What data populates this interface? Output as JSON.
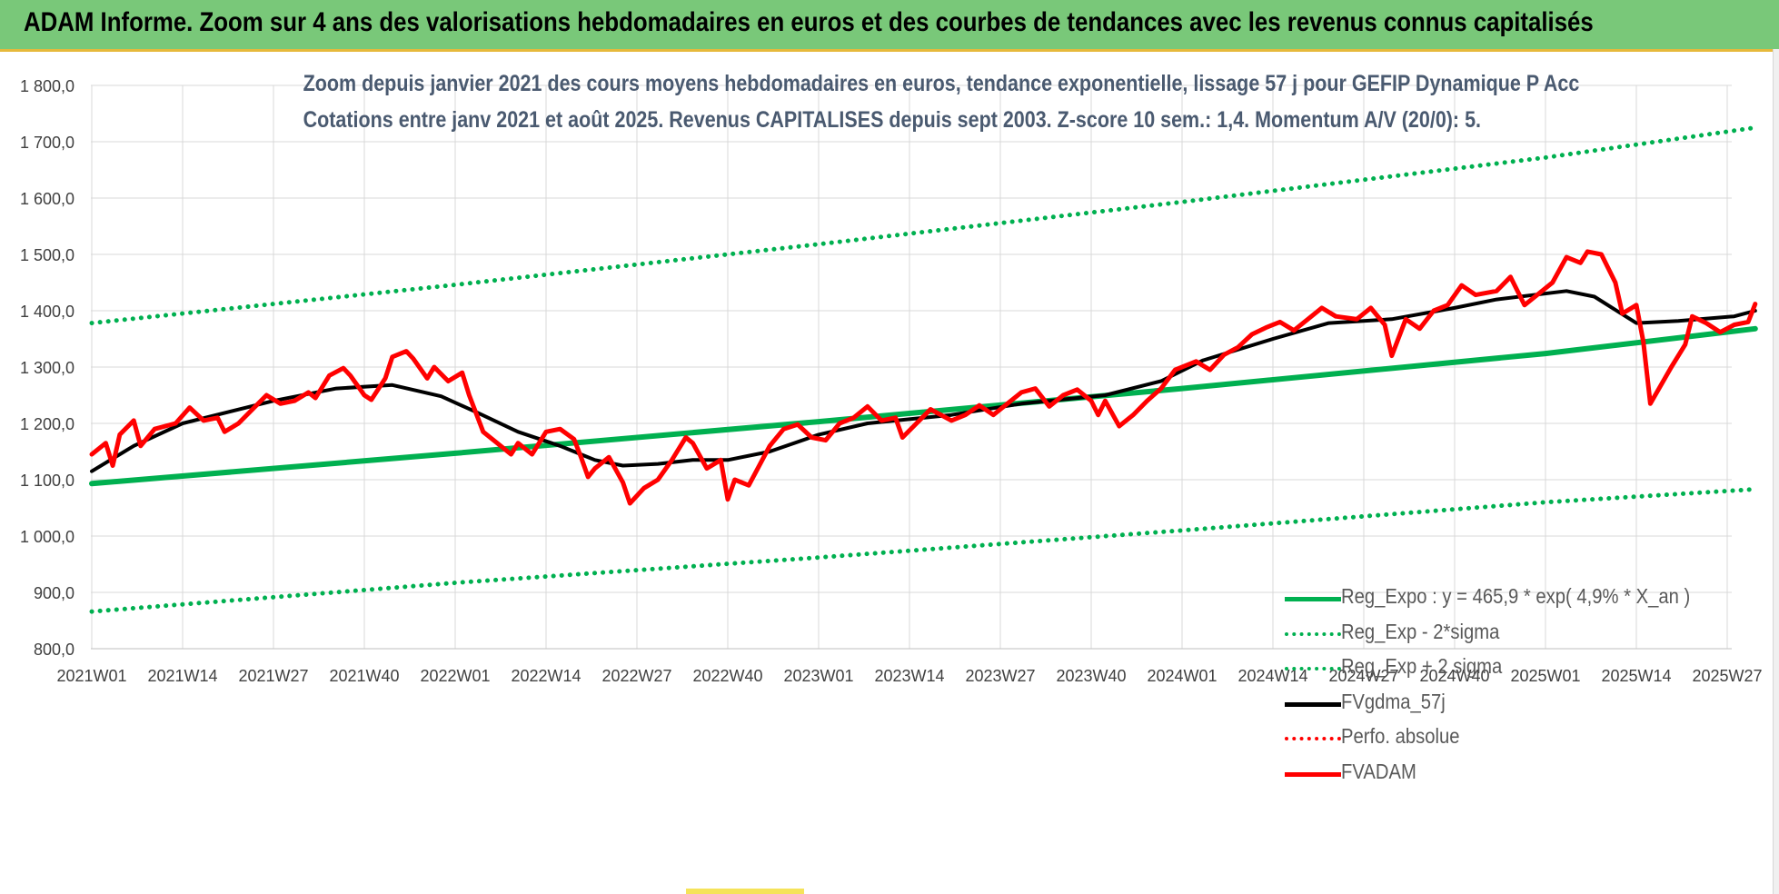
{
  "banner": {
    "title": "ADAM Informe. Zoom sur 4 ans des valorisations hebdomadaires en euros et des courbes de tendances avec les revenus connus capitalisés"
  },
  "chart_data": {
    "type": "line",
    "title": "Zoom depuis janvier 2021 des cours moyens hebdomadaires en euros, tendance exponentielle, lissage 57 j pour GEFIP Dynamique P Acc",
    "subtitle": "Cotations entre janv 2021 et août 2025. Revenus CAPITALISES depuis sept 2003. Z-score 10 sem.: 1,4. Momentum A/V (20/0): 5.",
    "xlabel": "",
    "ylabel": "",
    "ylim": [
      800,
      1800
    ],
    "y_ticks": [
      "800,0",
      "900,0",
      "1 000,0",
      "1 100,0",
      "1 200,0",
      "1 300,0",
      "1 400,0",
      "1 500,0",
      "1 600,0",
      "1 700,0",
      "1 800,0"
    ],
    "x_ticks": [
      "2021W01",
      "2021W14",
      "2021W27",
      "2021W40",
      "2022W01",
      "2022W14",
      "2022W27",
      "2022W40",
      "2023W01",
      "2023W14",
      "2023W27",
      "2023W40",
      "2024W01",
      "2024W14",
      "2024W27",
      "2024W40",
      "2025W01",
      "2025W14",
      "2025W27"
    ],
    "grid": true,
    "legend_position": "bottom-right",
    "series": [
      {
        "name": "Reg_Expo : y = 465,9 * exp( 4,9% *  X_an )",
        "color": "#00b050",
        "style": "solid",
        "points": [
          [
            "2021W01",
            1093
          ],
          [
            "2022W01",
            1147
          ],
          [
            "2023W01",
            1203
          ],
          [
            "2024W01",
            1262
          ],
          [
            "2025W01",
            1324
          ],
          [
            "2025W31",
            1368
          ]
        ]
      },
      {
        "name": "Reg_Exp - 2*sigma",
        "color": "#00b050",
        "style": "dotted",
        "points": [
          [
            "2021W01",
            866
          ],
          [
            "2022W01",
            917
          ],
          [
            "2023W01",
            962
          ],
          [
            "2024W01",
            1010
          ],
          [
            "2025W01",
            1060
          ],
          [
            "2025W31",
            1083
          ]
        ]
      },
      {
        "name": "Reg_Exp + 2 sigma",
        "color": "#00b050",
        "style": "dotted",
        "points": [
          [
            "2021W01",
            1378
          ],
          [
            "2022W01",
            1446
          ],
          [
            "2023W01",
            1518
          ],
          [
            "2024W01",
            1593
          ],
          [
            "2025W01",
            1672
          ],
          [
            "2025W31",
            1725
          ]
        ]
      },
      {
        "name": "FVgdma_57j",
        "color": "#000000",
        "style": "solid",
        "points": [
          [
            "2021W01",
            1115
          ],
          [
            "2021W07",
            1160
          ],
          [
            "2021W14",
            1200
          ],
          [
            "2021W27",
            1240
          ],
          [
            "2021W36",
            1262
          ],
          [
            "2021W44",
            1268
          ],
          [
            "2021W51",
            1248
          ],
          [
            "2022W04",
            1220
          ],
          [
            "2022W10",
            1185
          ],
          [
            "2022W16",
            1160
          ],
          [
            "2022W21",
            1135
          ],
          [
            "2022W25",
            1125
          ],
          [
            "2022W30",
            1128
          ],
          [
            "2022W35",
            1135
          ],
          [
            "2022W40",
            1135
          ],
          [
            "2022W46",
            1150
          ],
          [
            "2023W01",
            1180
          ],
          [
            "2023W08",
            1200
          ],
          [
            "2023W20",
            1215
          ],
          [
            "2023W30",
            1235
          ],
          [
            "2023W42",
            1250
          ],
          [
            "2023W50",
            1275
          ],
          [
            "2024W04",
            1312
          ],
          [
            "2024W14",
            1350
          ],
          [
            "2024W22",
            1378
          ],
          [
            "2024W31",
            1385
          ],
          [
            "2024W40",
            1405
          ],
          [
            "2024W46",
            1420
          ],
          [
            "2025W04",
            1435
          ],
          [
            "2025W08",
            1425
          ],
          [
            "2025W14",
            1378
          ],
          [
            "2025W20",
            1382
          ],
          [
            "2025W28",
            1390
          ],
          [
            "2025W31",
            1400
          ]
        ]
      },
      {
        "name": "Perfo. absolue",
        "color": "#ff0000",
        "style": "dotted",
        "points": []
      },
      {
        "name": "FVADAM",
        "color": "#ff0000",
        "style": "solid",
        "points": [
          [
            "2021W01",
            1145
          ],
          [
            "2021W03",
            1165
          ],
          [
            "2021W04",
            1125
          ],
          [
            "2021W05",
            1180
          ],
          [
            "2021W07",
            1205
          ],
          [
            "2021W08",
            1160
          ],
          [
            "2021W10",
            1190
          ],
          [
            "2021W13",
            1200
          ],
          [
            "2021W15",
            1228
          ],
          [
            "2021W17",
            1205
          ],
          [
            "2021W19",
            1210
          ],
          [
            "2021W20",
            1185
          ],
          [
            "2021W22",
            1200
          ],
          [
            "2021W24",
            1225
          ],
          [
            "2021W26",
            1250
          ],
          [
            "2021W28",
            1235
          ],
          [
            "2021W30",
            1240
          ],
          [
            "2021W32",
            1255
          ],
          [
            "2021W33",
            1245
          ],
          [
            "2021W35",
            1285
          ],
          [
            "2021W37",
            1298
          ],
          [
            "2021W38",
            1285
          ],
          [
            "2021W40",
            1250
          ],
          [
            "2021W41",
            1242
          ],
          [
            "2021W43",
            1280
          ],
          [
            "2021W44",
            1318
          ],
          [
            "2021W46",
            1328
          ],
          [
            "2021W47",
            1315
          ],
          [
            "2021W49",
            1280
          ],
          [
            "2021W50",
            1300
          ],
          [
            "2021W52",
            1275
          ],
          [
            "2022W02",
            1290
          ],
          [
            "2022W03",
            1250
          ],
          [
            "2022W05",
            1185
          ],
          [
            "2022W07",
            1165
          ],
          [
            "2022W09",
            1145
          ],
          [
            "2022W10",
            1165
          ],
          [
            "2022W12",
            1145
          ],
          [
            "2022W14",
            1185
          ],
          [
            "2022W16",
            1190
          ],
          [
            "2022W18",
            1172
          ],
          [
            "2022W19",
            1140
          ],
          [
            "2022W20",
            1105
          ],
          [
            "2022W21",
            1120
          ],
          [
            "2022W23",
            1140
          ],
          [
            "2022W25",
            1095
          ],
          [
            "2022W26",
            1058
          ],
          [
            "2022W28",
            1085
          ],
          [
            "2022W30",
            1100
          ],
          [
            "2022W32",
            1135
          ],
          [
            "2022W34",
            1175
          ],
          [
            "2022W35",
            1165
          ],
          [
            "2022W37",
            1120
          ],
          [
            "2022W39",
            1135
          ],
          [
            "2022W40",
            1065
          ],
          [
            "2022W41",
            1100
          ],
          [
            "2022W43",
            1090
          ],
          [
            "2022W46",
            1160
          ],
          [
            "2022W48",
            1190
          ],
          [
            "2022W50",
            1198
          ],
          [
            "2022W52",
            1175
          ],
          [
            "2023W02",
            1170
          ],
          [
            "2023W04",
            1200
          ],
          [
            "2023W06",
            1210
          ],
          [
            "2023W08",
            1230
          ],
          [
            "2023W10",
            1205
          ],
          [
            "2023W12",
            1210
          ],
          [
            "2023W13",
            1175
          ],
          [
            "2023W15",
            1200
          ],
          [
            "2023W17",
            1225
          ],
          [
            "2023W20",
            1205
          ],
          [
            "2023W22",
            1215
          ],
          [
            "2023W24",
            1232
          ],
          [
            "2023W26",
            1215
          ],
          [
            "2023W28",
            1235
          ],
          [
            "2023W30",
            1255
          ],
          [
            "2023W32",
            1262
          ],
          [
            "2023W34",
            1230
          ],
          [
            "2023W36",
            1250
          ],
          [
            "2023W38",
            1260
          ],
          [
            "2023W40",
            1240
          ],
          [
            "2023W41",
            1215
          ],
          [
            "2023W42",
            1240
          ],
          [
            "2023W44",
            1195
          ],
          [
            "2023W46",
            1215
          ],
          [
            "2023W48",
            1240
          ],
          [
            "2023W50",
            1262
          ],
          [
            "2023W52",
            1295
          ],
          [
            "2024W03",
            1310
          ],
          [
            "2024W05",
            1295
          ],
          [
            "2024W07",
            1322
          ],
          [
            "2024W09",
            1335
          ],
          [
            "2024W11",
            1358
          ],
          [
            "2024W13",
            1370
          ],
          [
            "2024W15",
            1380
          ],
          [
            "2024W17",
            1365
          ],
          [
            "2024W19",
            1385
          ],
          [
            "2024W21",
            1405
          ],
          [
            "2024W23",
            1390
          ],
          [
            "2024W26",
            1385
          ],
          [
            "2024W28",
            1405
          ],
          [
            "2024W30",
            1375
          ],
          [
            "2024W31",
            1320
          ],
          [
            "2024W33",
            1385
          ],
          [
            "2024W35",
            1368
          ],
          [
            "2024W37",
            1400
          ],
          [
            "2024W39",
            1410
          ],
          [
            "2024W41",
            1445
          ],
          [
            "2024W43",
            1428
          ],
          [
            "2024W46",
            1435
          ],
          [
            "2024W48",
            1460
          ],
          [
            "2024W50",
            1410
          ],
          [
            "2024W52",
            1430
          ],
          [
            "2025W02",
            1450
          ],
          [
            "2025W04",
            1495
          ],
          [
            "2025W06",
            1485
          ],
          [
            "2025W07",
            1505
          ],
          [
            "2025W09",
            1500
          ],
          [
            "2025W11",
            1450
          ],
          [
            "2025W12",
            1395
          ],
          [
            "2025W14",
            1410
          ],
          [
            "2025W15",
            1345
          ],
          [
            "2025W16",
            1235
          ],
          [
            "2025W19",
            1300
          ],
          [
            "2025W21",
            1340
          ],
          [
            "2025W22",
            1390
          ],
          [
            "2025W24",
            1378
          ],
          [
            "2025W26",
            1362
          ],
          [
            "2025W28",
            1375
          ],
          [
            "2025W30",
            1380
          ],
          [
            "2025W31",
            1412
          ]
        ]
      }
    ]
  }
}
